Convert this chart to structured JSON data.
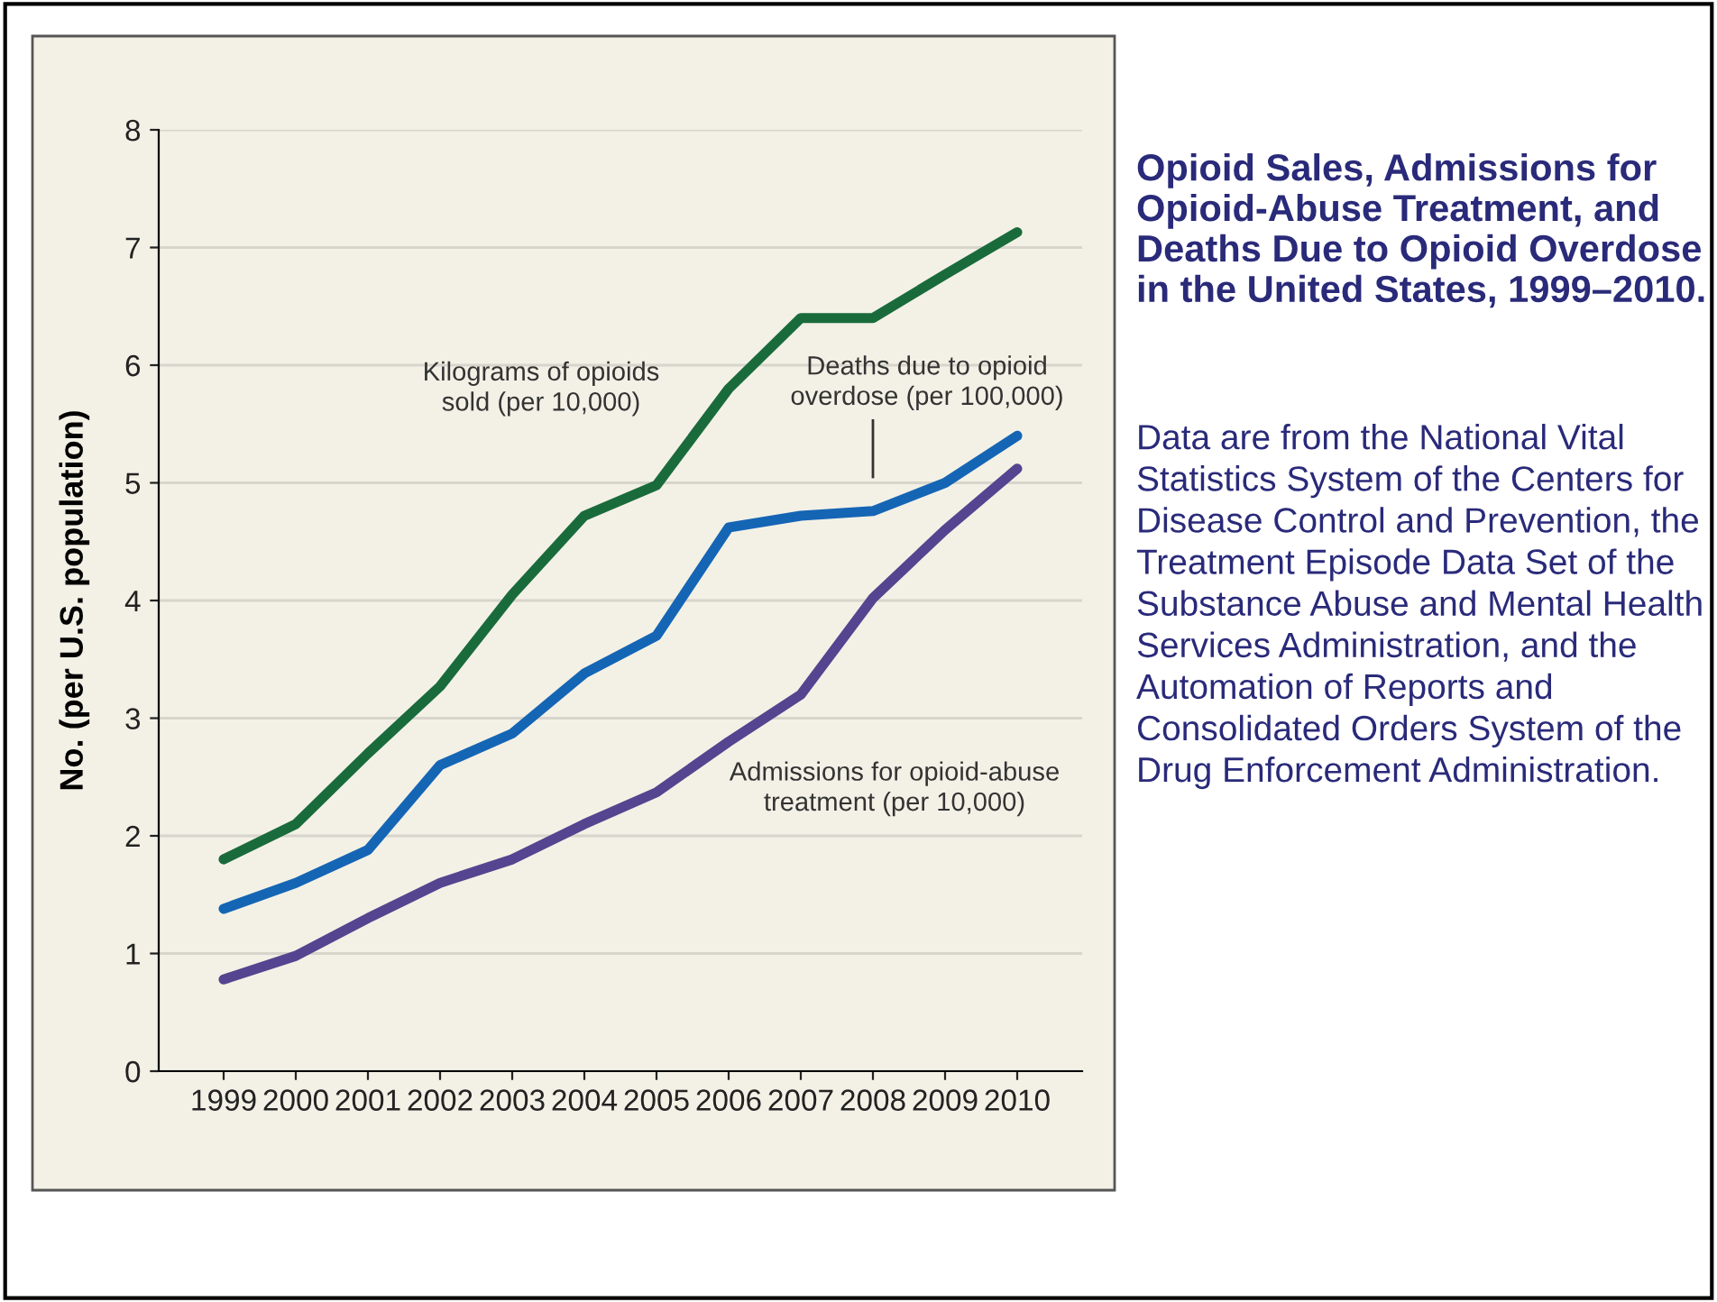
{
  "chart_data": {
    "type": "line",
    "title": "Opioid Sales, Admissions for Opioid-Abuse Treatment, and Deaths Due to Opioid Overdose in the United States, 1999–2010.",
    "ylabel": "No. (per U.S. population)",
    "categories": [
      "1999",
      "2000",
      "2001",
      "2002",
      "2003",
      "2004",
      "2005",
      "2006",
      "2007",
      "2008",
      "2009",
      "2010"
    ],
    "series": [
      {
        "name": "Kilograms of opioids sold (per 10,000)",
        "color": "#1a6b3c",
        "values": [
          1.8,
          2.1,
          2.7,
          3.27,
          4.05,
          4.72,
          4.98,
          5.8,
          6.4,
          6.4,
          6.77,
          7.13
        ]
      },
      {
        "name": "Deaths due to opioid overdose (per 100,000)",
        "color": "#1565b5",
        "values": [
          1.38,
          1.6,
          1.88,
          2.6,
          2.87,
          3.38,
          3.7,
          4.62,
          4.72,
          4.76,
          5.0,
          5.4
        ]
      },
      {
        "name": "Admissions for opioid-abuse treatment (per 10,000)",
        "color": "#55448f",
        "values": [
          0.78,
          0.98,
          1.3,
          1.6,
          1.8,
          2.1,
          2.37,
          2.8,
          3.2,
          4.02,
          4.6,
          5.12
        ]
      }
    ],
    "ylim": [
      0,
      8
    ],
    "yticks": [
      0,
      1,
      2,
      3,
      4,
      5,
      6,
      7,
      8
    ],
    "grid": "y",
    "legend": false,
    "marker": "none",
    "line_style": "solid",
    "annotations": [
      "Data are from the National Vital Statistics System of the Centers for Disease Control and Prevention, the Treatment Episode Data Set of the Substance Abuse and Mental Health Services Administration, and the Automation of Reports and Consolidated Orders System of the Drug Enforcement Administration."
    ]
  }
}
